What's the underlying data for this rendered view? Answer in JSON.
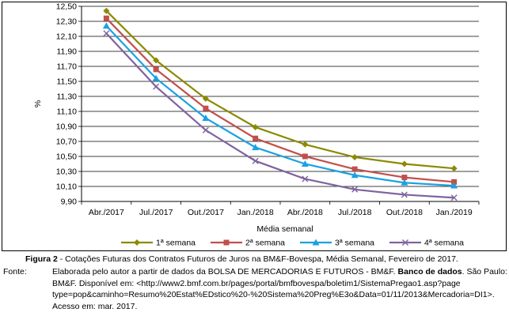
{
  "chart_data": {
    "type": "line",
    "title": "",
    "xlabel": "Média semanal",
    "ylabel": "%",
    "categories": [
      "Abr./2017",
      "Jul./2017",
      "Out./2017",
      "Jan./2018",
      "Abr./2018",
      "Jul./2018",
      "Out./2018",
      "Jan./2019"
    ],
    "ylim": [
      9.9,
      12.5
    ],
    "yticks": [
      "9,90",
      "10,10",
      "10,30",
      "10,50",
      "10,70",
      "10,90",
      "11,10",
      "11,30",
      "11,50",
      "11,70",
      "11,90",
      "12,10",
      "12,30",
      "12,50"
    ],
    "grid": true,
    "legend_position": "bottom",
    "series": [
      {
        "name": "1ª semana",
        "color": "#8B8A00",
        "marker": "diamond",
        "values": [
          12.44,
          11.78,
          11.27,
          10.89,
          10.66,
          10.49,
          10.4,
          10.34
        ]
      },
      {
        "name": "2ª semana",
        "color": "#C0504D",
        "marker": "square",
        "values": [
          12.34,
          11.66,
          11.14,
          10.74,
          10.5,
          10.33,
          10.22,
          10.16
        ]
      },
      {
        "name": "3ª semana",
        "color": "#1BA1E2",
        "marker": "triangle",
        "values": [
          12.24,
          11.54,
          11.01,
          10.62,
          10.4,
          10.25,
          10.15,
          10.11
        ]
      },
      {
        "name": "4ª semana",
        "color": "#7F63A0",
        "marker": "x",
        "values": [
          12.14,
          11.43,
          10.85,
          10.44,
          10.2,
          10.06,
          9.99,
          9.95
        ]
      }
    ]
  },
  "caption": {
    "label": "Figura 2",
    "text": " - Cotações Futuras dos Contratos Futuros de Juros na BM&F-Bovespa, Média Semanal, Fevereiro de 2017."
  },
  "source": {
    "label": "Fonte:",
    "line1": "Elaborada pelo autor a partir de dados da BOLSA DE MERCADORIAS E FUTUROS - BM&F. ",
    "line1_bold": "Banco de dados",
    "line1_tail": ". São Paulo:",
    "line2": "BM&F.  Disponível  em:  <http://www2.bmf.com.br/pages/portal/bmfbovespa/boletim1/SistemaPregao1.asp?page",
    "line3": "type=pop&caminho=Resumo%20Estat%EDstico%20-%20Sistema%20Preg%E3o&Data=01/11/2013&Mercadoria=DI1>.",
    "line4": "Acesso em: mar. 2017."
  }
}
